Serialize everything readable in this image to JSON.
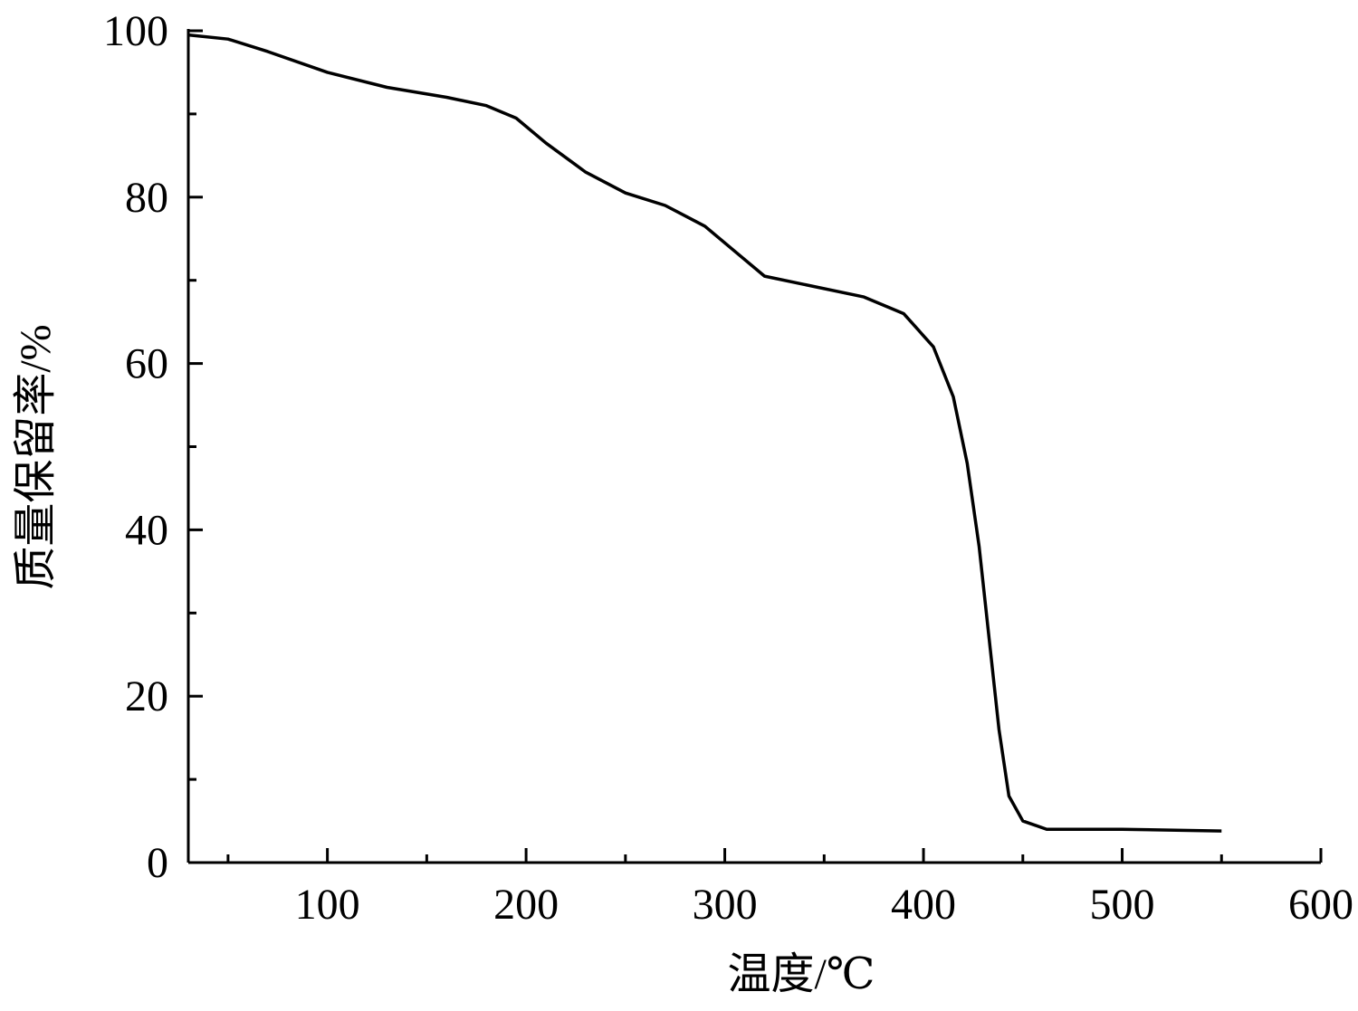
{
  "chart_data": {
    "type": "line",
    "x_label": "温度/℃",
    "y_label": "质量保留率/%",
    "x": [
      30,
      50,
      70,
      100,
      130,
      160,
      180,
      195,
      210,
      230,
      250,
      270,
      290,
      305,
      320,
      340,
      370,
      390,
      405,
      415,
      422,
      428,
      433,
      438,
      443,
      450,
      462,
      500,
      550
    ],
    "series": [
      {
        "color": "#000000",
        "values": [
          99.5,
          99,
          97.5,
          95,
          93.2,
          92,
          91,
          89.5,
          86.5,
          83,
          80.5,
          79,
          76.5,
          73.5,
          70.5,
          69.5,
          68,
          66,
          62,
          56,
          48,
          38,
          27,
          16,
          8,
          5,
          4,
          4,
          3.8
        ]
      }
    ],
    "xlim": [
      30,
      600
    ],
    "ylim": [
      0,
      100
    ],
    "xticks": [
      100,
      200,
      300,
      400,
      500,
      600
    ],
    "yticks": [
      0,
      20,
      40,
      60,
      80,
      100
    ],
    "xminorticks": [
      50,
      150,
      250,
      350,
      450,
      550
    ],
    "yminorticks": [
      10,
      30,
      50,
      70,
      90
    ],
    "grid": false
  }
}
